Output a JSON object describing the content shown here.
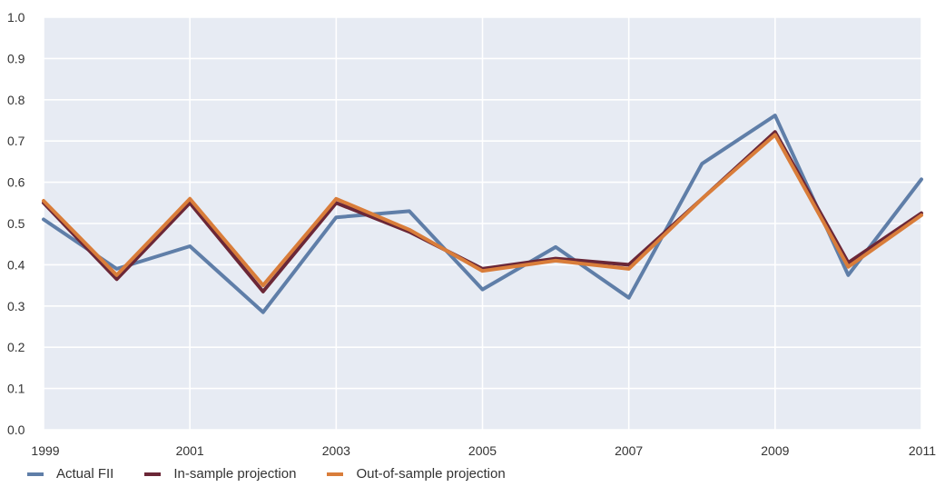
{
  "chart_data": {
    "type": "line",
    "title": "",
    "xlabel": "",
    "ylabel": "",
    "x": [
      1999,
      2000,
      2001,
      2002,
      2003,
      2004,
      2005,
      2006,
      2007,
      2008,
      2009,
      2010,
      2011
    ],
    "xlim": [
      1999,
      2011
    ],
    "ylim": [
      0,
      1.0
    ],
    "x_ticks": [
      "1999",
      "2001",
      "2003",
      "2005",
      "2007",
      "2009",
      "2011"
    ],
    "y_ticks": [
      "0.0",
      "0.1",
      "0.2",
      "0.3",
      "0.4",
      "0.5",
      "0.6",
      "0.7",
      "0.8",
      "0.9",
      "1.0"
    ],
    "grid": true,
    "legend_position": "bottom-left",
    "background_color": "#e7ebf3",
    "series": [
      {
        "name": "Actual FII",
        "color": "#5f7ea8",
        "values": [
          0.51,
          0.39,
          0.445,
          0.285,
          0.515,
          0.53,
          0.34,
          0.443,
          0.32,
          0.645,
          0.762,
          0.375,
          0.607
        ]
      },
      {
        "name": "In-sample projection",
        "color": "#6b2737",
        "values": [
          0.55,
          0.365,
          0.55,
          0.335,
          0.55,
          0.48,
          0.39,
          0.415,
          0.4,
          0.56,
          0.722,
          0.405,
          0.525
        ]
      },
      {
        "name": "Out-of-sample projection",
        "color": "#d97d3a",
        "values": [
          0.555,
          0.375,
          0.56,
          0.35,
          0.56,
          0.485,
          0.385,
          0.41,
          0.39,
          0.56,
          0.715,
          0.395,
          0.52
        ]
      }
    ]
  }
}
